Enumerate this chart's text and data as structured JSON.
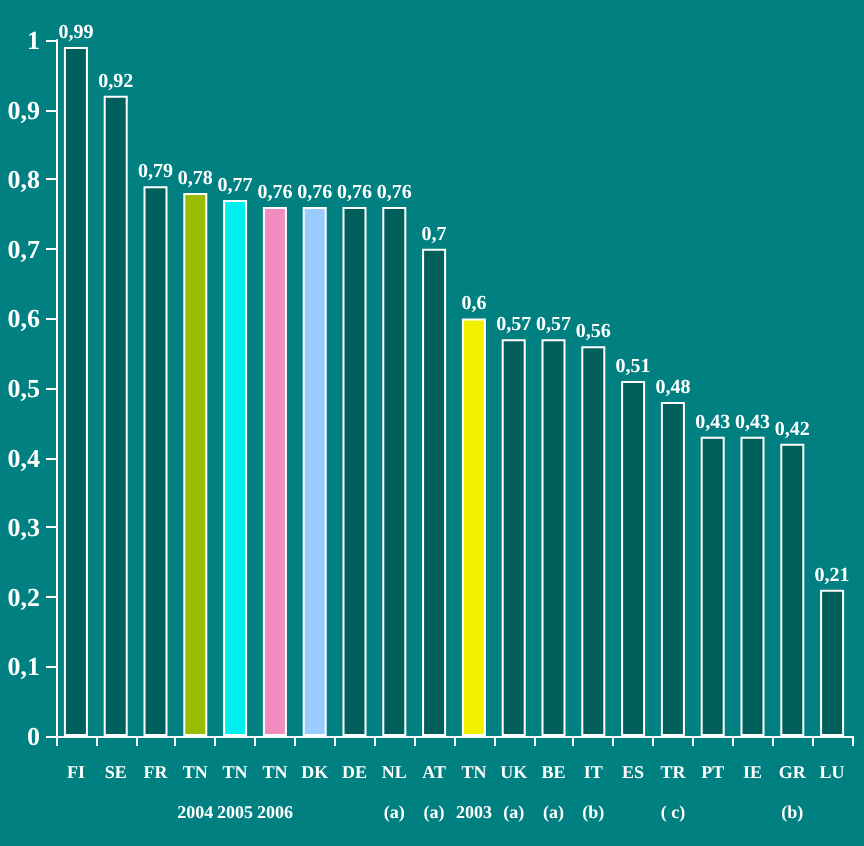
{
  "chart_data": {
    "type": "bar",
    "categories": [
      "FI",
      "SE",
      "FR",
      "TN\n2004",
      "TN\n2005",
      "TN\n2006",
      "DK",
      "DE",
      "NL\n(a)",
      "AT\n(a)",
      "TN\n2003",
      "UK\n(a)",
      "BE\n(a)",
      "IT\n(b)",
      "ES",
      "TR\n( c)",
      "PT",
      "IE",
      "GR\n(b)",
      "LU"
    ],
    "values": [
      0.99,
      0.92,
      0.79,
      0.78,
      0.77,
      0.76,
      0.76,
      0.76,
      0.76,
      0.7,
      0.6,
      0.57,
      0.57,
      0.56,
      0.51,
      0.48,
      0.43,
      0.43,
      0.42,
      0.21
    ],
    "colors": [
      "#005f5a",
      "#005f5a",
      "#005f5a",
      "#99bb00",
      "#00f0f0",
      "#f08cc0",
      "#99ccff",
      "#005f5a",
      "#005f5a",
      "#005f5a",
      "#f0f000",
      "#005f5a",
      "#005f5a",
      "#005f5a",
      "#005f5a",
      "#005f5a",
      "#005f5a",
      "#005f5a",
      "#005f5a",
      "#005f5a"
    ],
    "value_labels": [
      "0,99",
      "0,92",
      "0,79",
      "0,78",
      "0,77",
      "0,76",
      "0,76",
      "0,76",
      "0,76",
      "0,7",
      "0,6",
      "0,57",
      "0,57",
      "0,56",
      "0,51",
      "0,48",
      "0,43",
      "0,43",
      "0,42",
      "0,21"
    ],
    "ylim": [
      0,
      1
    ],
    "yticks": [
      0,
      {
        "value": 0.1,
        "label": "0,1"
      },
      {
        "value": 0.2,
        "label": "0,2"
      },
      {
        "value": 0.3,
        "label": "0,3"
      },
      {
        "value": 0.4,
        "label": "0,4"
      },
      {
        "value": 0.5,
        "label": "0,5"
      },
      {
        "value": 0.6,
        "label": "0,6"
      },
      {
        "value": 0.7,
        "label": "0,7"
      },
      {
        "value": 0.8,
        "label": "0,8"
      },
      {
        "value": 0.9,
        "label": "0,9"
      },
      1
    ],
    "grid": false
  }
}
